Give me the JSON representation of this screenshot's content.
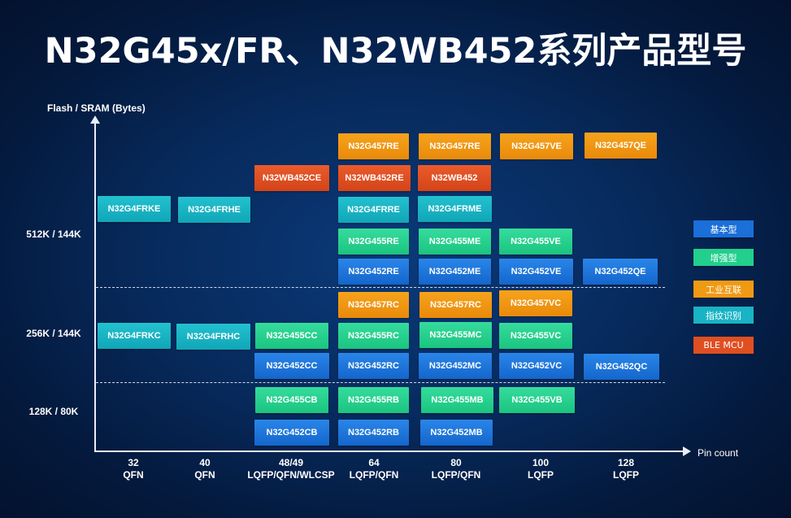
{
  "title": "N32G45x/FR、N32WB452系列产品型号",
  "y_axis_label": "Flash / SRAM (Bytes)",
  "x_axis_label": "Pin count",
  "rows": [
    "512K / 144K",
    "256K / 144K",
    "128K / 80K"
  ],
  "columns": [
    {
      "pins": "32",
      "package": "QFN"
    },
    {
      "pins": "40",
      "package": "QFN"
    },
    {
      "pins": "48/49",
      "package": "LQFP/QFN/WLCSP"
    },
    {
      "pins": "64",
      "package": "LQFP/QFN"
    },
    {
      "pins": "80",
      "package": "LQFP/QFN"
    },
    {
      "pins": "100",
      "package": "LQFP"
    },
    {
      "pins": "128",
      "package": "LQFP"
    }
  ],
  "legend": [
    {
      "label": "基本型",
      "color": "#1a6fd8"
    },
    {
      "label": "增强型",
      "color": "#22cf8c"
    },
    {
      "label": "工业互联",
      "color": "#f09a14"
    },
    {
      "label": "指纹识别",
      "color": "#18b3c4"
    },
    {
      "label": "BLE MCU",
      "color": "#df4f22"
    }
  ],
  "products": [
    {
      "name": "N32G457RE",
      "type": "工业互联",
      "pins": "64",
      "memory": "512K / 144K"
    },
    {
      "name": "N32G457RE",
      "type": "工业互联",
      "pins": "80",
      "memory": "512K / 144K"
    },
    {
      "name": "N32G457VE",
      "type": "工业互联",
      "pins": "100",
      "memory": "512K / 144K"
    },
    {
      "name": "N32G457QE",
      "type": "工业互联",
      "pins": "128",
      "memory": "512K / 144K"
    },
    {
      "name": "N32WB452CE",
      "type": "BLE MCU",
      "pins": "48/49",
      "memory": "512K / 144K"
    },
    {
      "name": "N32WB452RE",
      "type": "BLE MCU",
      "pins": "64",
      "memory": "512K / 144K"
    },
    {
      "name": "N32WB452",
      "type": "BLE MCU",
      "pins": "80",
      "memory": "512K / 144K"
    },
    {
      "name": "N32G4FRKE",
      "type": "指纹识别",
      "pins": "32",
      "memory": "512K / 144K"
    },
    {
      "name": "N32G4FRHE",
      "type": "指纹识别",
      "pins": "40",
      "memory": "512K / 144K"
    },
    {
      "name": "N32G4FRRE",
      "type": "指纹识别",
      "pins": "64",
      "memory": "512K / 144K"
    },
    {
      "name": "N32G4FRME",
      "type": "指纹识别",
      "pins": "80",
      "memory": "512K / 144K"
    },
    {
      "name": "N32G455RE",
      "type": "增强型",
      "pins": "64",
      "memory": "512K / 144K"
    },
    {
      "name": "N32G455ME",
      "type": "增强型",
      "pins": "80",
      "memory": "512K / 144K"
    },
    {
      "name": "N32G455VE",
      "type": "增强型",
      "pins": "100",
      "memory": "512K / 144K"
    },
    {
      "name": "N32G452RE",
      "type": "基本型",
      "pins": "64",
      "memory": "512K / 144K"
    },
    {
      "name": "N32G452ME",
      "type": "基本型",
      "pins": "80",
      "memory": "512K / 144K"
    },
    {
      "name": "N32G452VE",
      "type": "基本型",
      "pins": "100",
      "memory": "512K / 144K"
    },
    {
      "name": "N32G452QE",
      "type": "基本型",
      "pins": "128",
      "memory": "512K / 144K"
    },
    {
      "name": "N32G457RC",
      "type": "工业互联",
      "pins": "64",
      "memory": "256K / 144K"
    },
    {
      "name": "N32G457RC",
      "type": "工业互联",
      "pins": "80",
      "memory": "256K / 144K"
    },
    {
      "name": "N32G457VC",
      "type": "工业互联",
      "pins": "100",
      "memory": "256K / 144K"
    },
    {
      "name": "N32G4FRKC",
      "type": "指纹识别",
      "pins": "32",
      "memory": "256K / 144K"
    },
    {
      "name": "N32G4FRHC",
      "type": "指纹识别",
      "pins": "40",
      "memory": "256K / 144K"
    },
    {
      "name": "N32G455CC",
      "type": "增强型",
      "pins": "48/49",
      "memory": "256K / 144K"
    },
    {
      "name": "N32G455RC",
      "type": "增强型",
      "pins": "64",
      "memory": "256K / 144K"
    },
    {
      "name": "N32G455MC",
      "type": "增强型",
      "pins": "80",
      "memory": "256K / 144K"
    },
    {
      "name": "N32G455VC",
      "type": "增强型",
      "pins": "100",
      "memory": "256K / 144K"
    },
    {
      "name": "N32G452CC",
      "type": "基本型",
      "pins": "48/49",
      "memory": "256K / 144K"
    },
    {
      "name": "N32G452RC",
      "type": "基本型",
      "pins": "64",
      "memory": "256K / 144K"
    },
    {
      "name": "N32G452MC",
      "type": "基本型",
      "pins": "80",
      "memory": "256K / 144K"
    },
    {
      "name": "N32G452VC",
      "type": "基本型",
      "pins": "100",
      "memory": "256K / 144K"
    },
    {
      "name": "N32G452QC",
      "type": "基本型",
      "pins": "128",
      "memory": "256K / 144K"
    },
    {
      "name": "N32G455CB",
      "type": "增强型",
      "pins": "48/49",
      "memory": "128K / 80K"
    },
    {
      "name": "N32G455RB",
      "type": "增强型",
      "pins": "64",
      "memory": "128K / 80K"
    },
    {
      "name": "N32G455MB",
      "type": "增强型",
      "pins": "80",
      "memory": "128K / 80K"
    },
    {
      "name": "N32G455VB",
      "type": "增强型",
      "pins": "100",
      "memory": "128K / 80K"
    },
    {
      "name": "N32G452CB",
      "type": "基本型",
      "pins": "48/49",
      "memory": "128K / 80K"
    },
    {
      "name": "N32G452RB",
      "type": "基本型",
      "pins": "64",
      "memory": "128K / 80K"
    },
    {
      "name": "N32G452MB",
      "type": "基本型",
      "pins": "80",
      "memory": "128K / 80K"
    }
  ]
}
